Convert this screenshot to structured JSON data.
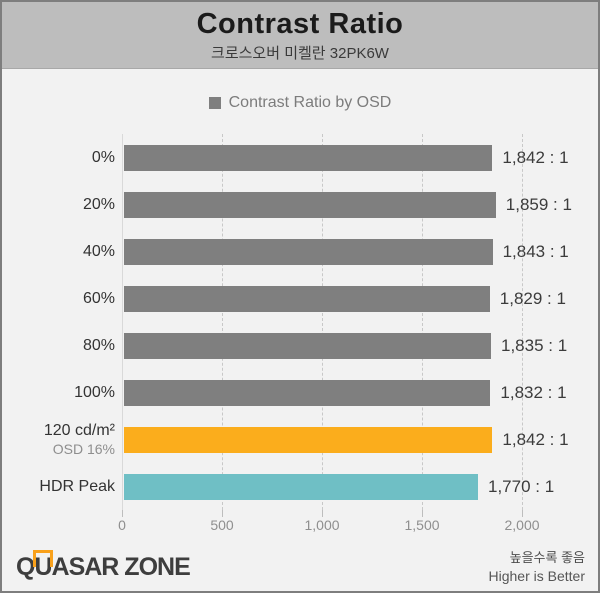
{
  "header": {
    "title": "Contrast Ratio",
    "subtitle": "크로스오버 미켈란 32PK6W"
  },
  "chart_data": {
    "type": "bar",
    "orientation": "horizontal",
    "title": "Contrast Ratio",
    "subtitle": "크로스오버 미켈란 32PK6W",
    "legend": {
      "label": "Contrast Ratio by OSD",
      "position": "top",
      "swatch_color": "#7f7f7f"
    },
    "xlim": [
      0,
      2000
    ],
    "x_ticks": [
      0,
      500,
      1000,
      1500,
      2000
    ],
    "x_tick_labels": [
      "0",
      "500",
      "1,000",
      "1,500",
      "2,000"
    ],
    "grid": "vertical-dashed",
    "bars": [
      {
        "category": "0%",
        "sublabel": null,
        "value": 1842,
        "value_label": "1,842 : 1",
        "color": "#7f7f7f"
      },
      {
        "category": "20%",
        "sublabel": null,
        "value": 1859,
        "value_label": "1,859 : 1",
        "color": "#7f7f7f"
      },
      {
        "category": "40%",
        "sublabel": null,
        "value": 1843,
        "value_label": "1,843 : 1",
        "color": "#7f7f7f"
      },
      {
        "category": "60%",
        "sublabel": null,
        "value": 1829,
        "value_label": "1,829 : 1",
        "color": "#7f7f7f"
      },
      {
        "category": "80%",
        "sublabel": null,
        "value": 1835,
        "value_label": "1,835 : 1",
        "color": "#7f7f7f"
      },
      {
        "category": "100%",
        "sublabel": null,
        "value": 1832,
        "value_label": "1,832 : 1",
        "color": "#7f7f7f"
      },
      {
        "category": "120 cd/m²",
        "sublabel": "OSD 16%",
        "value": 1842,
        "value_label": "1,842 : 1",
        "color": "#fbad1c"
      },
      {
        "category": "HDR Peak",
        "sublabel": null,
        "value": 1770,
        "value_label": "1,770 : 1",
        "color": "#6fbfc5"
      }
    ]
  },
  "colors": {
    "bar_gray": "#7f7f7f",
    "bar_orange": "#fbad1c",
    "bar_teal": "#6fbfc5",
    "header_bg": "#bdbdbd",
    "page_bg": "#f2f2f2",
    "logo_accent": "#f9a11b"
  },
  "footer": {
    "logo_q": "Q",
    "logo_u": "U",
    "logo_rest": "ASAR ZONE",
    "note_ko": "높을수록 좋음",
    "note_en": "Higher is Better"
  }
}
